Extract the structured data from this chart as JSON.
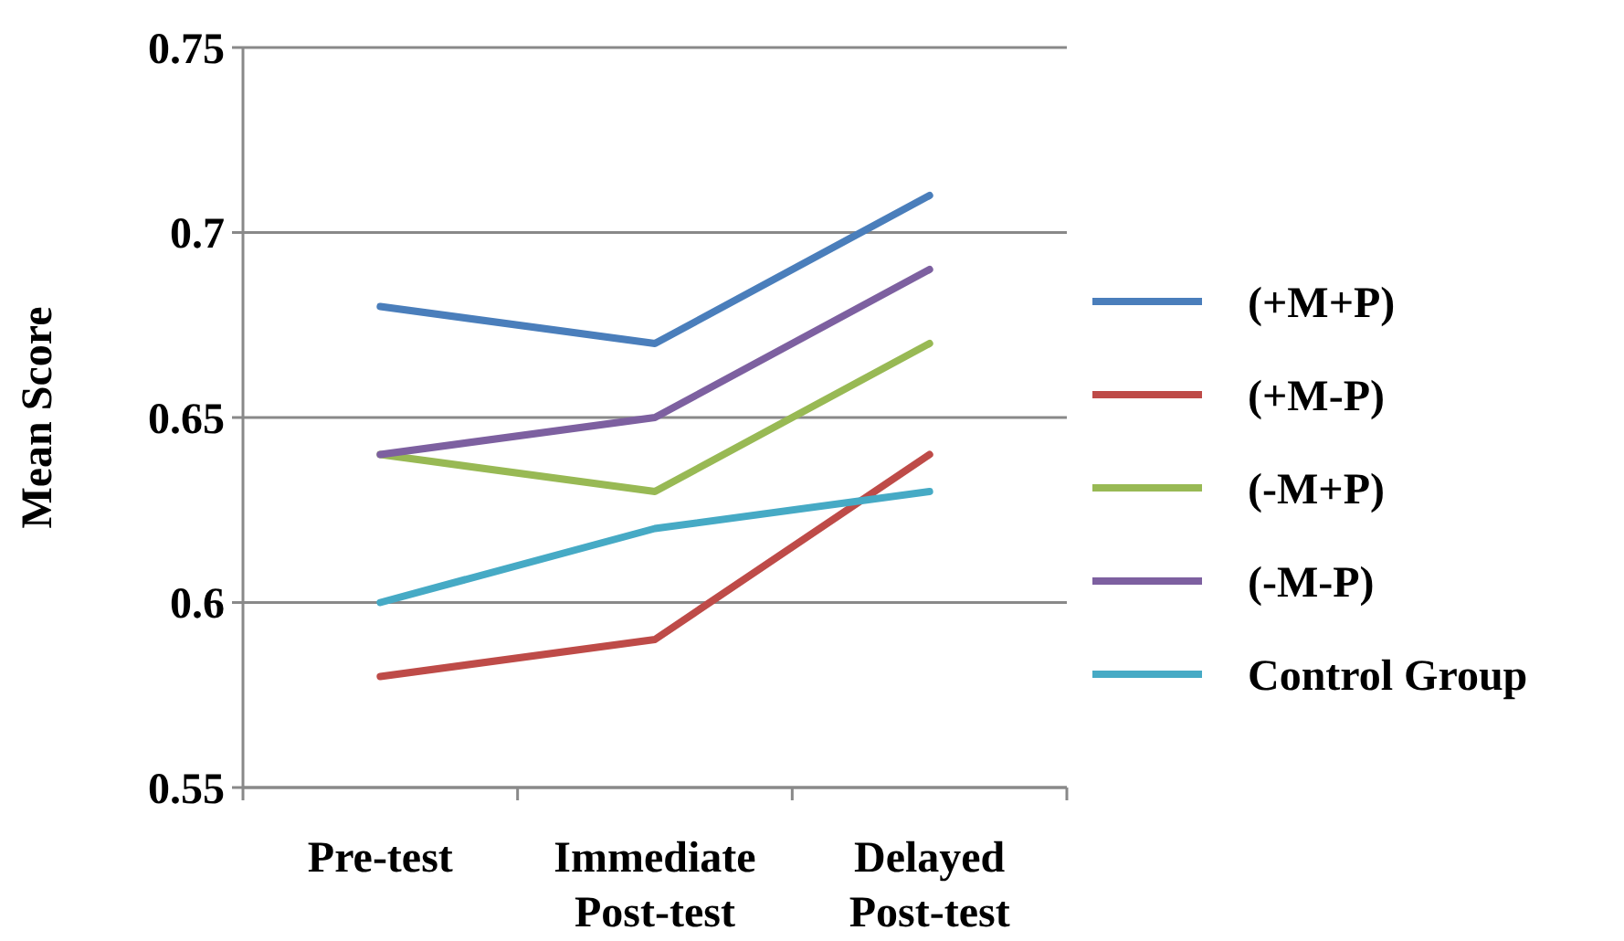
{
  "chart_data": {
    "type": "line",
    "ylabel": "Mean Score",
    "categories": [
      "Pre-test",
      "Immediate Post-test",
      "Delayed Post-test"
    ],
    "series": [
      {
        "name": "(+M+P)",
        "color": "#4a7ebb",
        "values": [
          0.68,
          0.67,
          0.71
        ]
      },
      {
        "name": "(+M-P)",
        "color": "#be4b48",
        "values": [
          0.58,
          0.59,
          0.64
        ]
      },
      {
        "name": "(-M+P)",
        "color": "#98b954",
        "values": [
          0.64,
          0.63,
          0.67
        ]
      },
      {
        "name": "(-M-P)",
        "color": "#7d60a0",
        "values": [
          0.64,
          0.65,
          0.69
        ]
      },
      {
        "name": "Control Group",
        "color": "#46aac5",
        "values": [
          0.6,
          0.62,
          0.63
        ]
      }
    ],
    "ylim": [
      0.55,
      0.75
    ],
    "yticks": [
      0.55,
      0.6,
      0.65,
      0.7,
      0.75
    ],
    "grid": "y",
    "legend": "right",
    "marker": "none",
    "line_style": "solid"
  }
}
